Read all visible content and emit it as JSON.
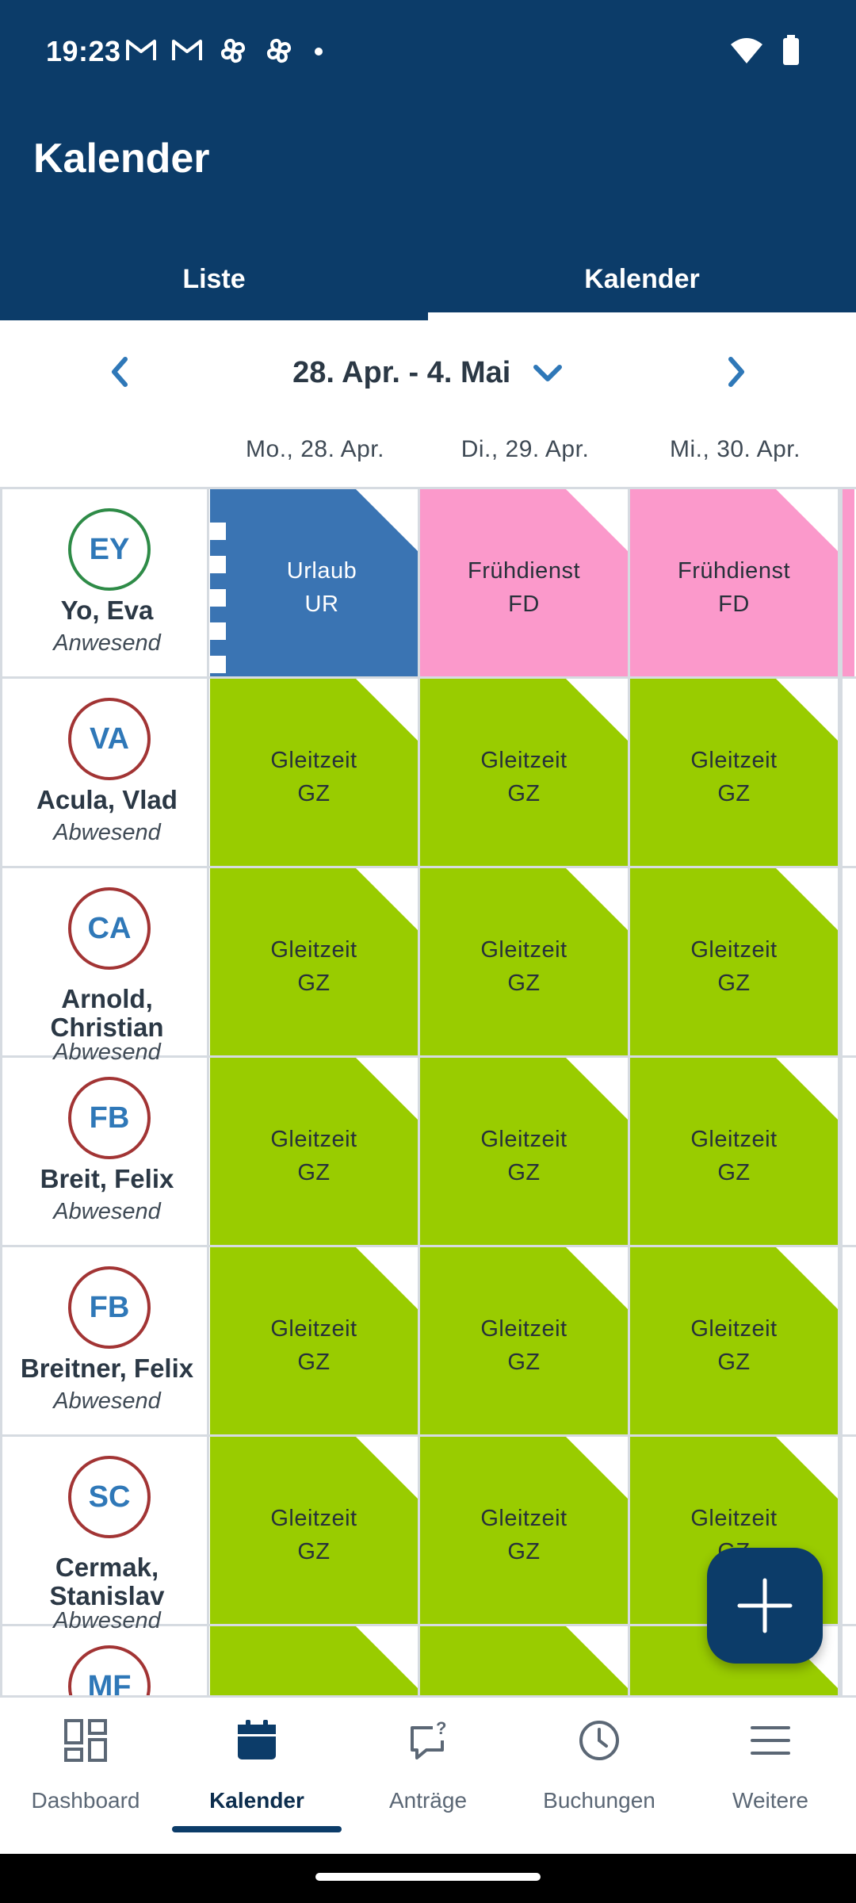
{
  "status_bar": {
    "time": "19:23",
    "icons": [
      "gmail-icon",
      "gmail-icon",
      "pinwheel-icon",
      "pinwheel-icon",
      "dot-icon"
    ],
    "right_icons": [
      "wifi-icon",
      "battery-icon"
    ]
  },
  "header": {
    "title": "Kalender"
  },
  "tabs": [
    {
      "label": "Liste",
      "active": false
    },
    {
      "label": "Kalender",
      "active": true
    }
  ],
  "week": {
    "label": "28. Apr. - 4. Mai"
  },
  "days": [
    "Mo., 28. Apr.",
    "Di., 29. Apr.",
    "Mi., 30. Apr."
  ],
  "people": [
    {
      "initials": "EY",
      "name": "Yo, Eva",
      "status": "Anwesend",
      "avatar_color": "#2e8b47",
      "entries": [
        {
          "label": "Urlaub",
          "code": "UR",
          "color": "#3a74b3",
          "kind": "urlaub"
        },
        {
          "label": "Frühdienst",
          "code": "FD",
          "color": "#fb99cb",
          "kind": "normal"
        },
        {
          "label": "Frühdienst",
          "code": "FD",
          "color": "#fb99cb",
          "kind": "normal"
        }
      ],
      "edge_color": "#fb99cb"
    },
    {
      "initials": "VA",
      "name": "Acula, Vlad",
      "status": "Abwesend",
      "avatar_color": "#a23434",
      "entries": [
        {
          "label": "Gleitzeit",
          "code": "GZ",
          "color": "#99cc00",
          "kind": "normal"
        },
        {
          "label": "Gleitzeit",
          "code": "GZ",
          "color": "#99cc00",
          "kind": "normal"
        },
        {
          "label": "Gleitzeit",
          "code": "GZ",
          "color": "#99cc00",
          "kind": "normal"
        }
      ]
    },
    {
      "initials": "CA",
      "name_lines": [
        "Arnold,",
        "Christian"
      ],
      "status": "Abwesend",
      "avatar_color": "#a23434",
      "entries": [
        {
          "label": "Gleitzeit",
          "code": "GZ",
          "color": "#99cc00",
          "kind": "normal"
        },
        {
          "label": "Gleitzeit",
          "code": "GZ",
          "color": "#99cc00",
          "kind": "normal"
        },
        {
          "label": "Gleitzeit",
          "code": "GZ",
          "color": "#99cc00",
          "kind": "normal"
        }
      ]
    },
    {
      "initials": "FB",
      "name": "Breit, Felix",
      "status": "Abwesend",
      "avatar_color": "#a23434",
      "entries": [
        {
          "label": "Gleitzeit",
          "code": "GZ",
          "color": "#99cc00",
          "kind": "normal"
        },
        {
          "label": "Gleitzeit",
          "code": "GZ",
          "color": "#99cc00",
          "kind": "normal"
        },
        {
          "label": "Gleitzeit",
          "code": "GZ",
          "color": "#99cc00",
          "kind": "normal"
        }
      ]
    },
    {
      "initials": "FB",
      "name": "Breitner, Felix",
      "status": "Abwesend",
      "avatar_color": "#a23434",
      "entries": [
        {
          "label": "Gleitzeit",
          "code": "GZ",
          "color": "#99cc00",
          "kind": "normal"
        },
        {
          "label": "Gleitzeit",
          "code": "GZ",
          "color": "#99cc00",
          "kind": "normal"
        },
        {
          "label": "Gleitzeit",
          "code": "GZ",
          "color": "#99cc00",
          "kind": "normal"
        }
      ]
    },
    {
      "initials": "SC",
      "name_lines": [
        "Cermak,",
        "Stanislav"
      ],
      "status": "Abwesend",
      "avatar_color": "#a23434",
      "entries": [
        {
          "label": "Gleitzeit",
          "code": "GZ",
          "color": "#99cc00",
          "kind": "normal"
        },
        {
          "label": "Gleitzeit",
          "code": "GZ",
          "color": "#99cc00",
          "kind": "normal"
        },
        {
          "label": "Gleitzeit",
          "code": "GZ",
          "color": "#99cc00",
          "kind": "normal"
        }
      ]
    },
    {
      "initials": "MF",
      "avatar_color": "#a23434",
      "entries": [
        {
          "color": "#99cc00",
          "kind": "normal"
        },
        {
          "color": "#99cc00",
          "kind": "normal"
        },
        {
          "color": "#99cc00",
          "kind": "normal"
        }
      ]
    }
  ],
  "fab": {
    "icon": "plus-icon"
  },
  "bottom_nav": [
    {
      "label": "Dashboard",
      "icon": "dashboard-icon",
      "active": false
    },
    {
      "label": "Kalender",
      "icon": "calendar-icon",
      "active": true
    },
    {
      "label": "Anträge",
      "icon": "request-icon",
      "active": false
    },
    {
      "label": "Buchungen",
      "icon": "clock-icon",
      "active": false
    },
    {
      "label": "Weitere",
      "icon": "menu-icon",
      "active": false
    }
  ],
  "colors": {
    "primary": "#0c3c69",
    "vacation": "#3a74b3",
    "early_shift": "#fb99cb",
    "flextime": "#99cc00"
  }
}
